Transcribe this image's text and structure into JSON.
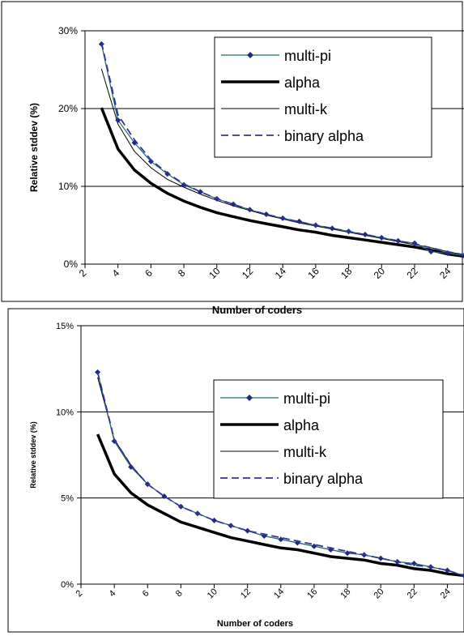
{
  "chart_data": [
    {
      "type": "line",
      "xlabel": "Number of coders",
      "ylabel": "Relative stddev (%)",
      "ylim": [
        0,
        30
      ],
      "yticks": [
        "0%",
        "10%",
        "20%",
        "30%"
      ],
      "xticks": [
        "2",
        "4",
        "6",
        "8",
        "10",
        "12",
        "14",
        "16",
        "18",
        "20",
        "22",
        "24"
      ],
      "xlim": [
        2,
        25
      ],
      "grid": "horizontal",
      "legend_position": "top-right",
      "x": [
        3,
        4,
        5,
        6,
        7,
        8,
        9,
        10,
        11,
        12,
        13,
        14,
        15,
        16,
        17,
        18,
        19,
        20,
        21,
        22,
        23,
        24,
        25
      ],
      "series": [
        {
          "name": "multi-pi",
          "style": "line-diamond",
          "color": "#1F6E6E",
          "values": [
            28.3,
            18.5,
            15.6,
            13.2,
            11.6,
            10.2,
            9.3,
            8.4,
            7.7,
            7.0,
            6.4,
            5.9,
            5.5,
            5.0,
            4.6,
            4.2,
            3.8,
            3.4,
            3.0,
            2.7,
            1.6,
            1.4,
            1.1
          ]
        },
        {
          "name": "alpha",
          "style": "thick",
          "color": "#000000",
          "values": [
            20.1,
            14.8,
            12.1,
            10.4,
            9.1,
            8.1,
            7.3,
            6.6,
            6.1,
            5.6,
            5.2,
            4.8,
            4.4,
            4.1,
            3.7,
            3.4,
            3.1,
            2.8,
            2.5,
            2.2,
            1.8,
            1.3,
            1.0
          ]
        },
        {
          "name": "multi-k",
          "style": "thin",
          "color": "#000000",
          "values": [
            25.1,
            18.0,
            14.5,
            12.4,
            10.9,
            9.9,
            9.0,
            8.2,
            7.5,
            6.9,
            6.3,
            5.8,
            5.3,
            4.9,
            4.5,
            4.1,
            3.7,
            3.3,
            2.9,
            2.5,
            2.1,
            1.6,
            1.2
          ]
        },
        {
          "name": "binary alpha",
          "style": "dashed",
          "color": "#333399",
          "values": [
            28.5,
            19.2,
            16.0,
            13.4,
            11.7,
            10.3,
            9.3,
            8.4,
            7.7,
            7.0,
            6.4,
            5.9,
            5.4,
            5.0,
            4.6,
            4.2,
            3.8,
            3.4,
            3.0,
            2.6,
            2.1,
            1.6,
            1.2
          ]
        }
      ]
    },
    {
      "type": "line",
      "xlabel": "Number of coders",
      "ylabel": "Relative stddev (%)",
      "ylim": [
        0,
        15
      ],
      "yticks": [
        "0%",
        "5%",
        "10%",
        "15%"
      ],
      "xticks": [
        "2",
        "4",
        "6",
        "8",
        "10",
        "12",
        "14",
        "16",
        "18",
        "20",
        "22",
        "24"
      ],
      "xlim": [
        2,
        25
      ],
      "grid": "horizontal",
      "legend_position": "top-right",
      "x": [
        3,
        4,
        5,
        6,
        7,
        8,
        9,
        10,
        11,
        12,
        13,
        14,
        15,
        16,
        17,
        18,
        19,
        20,
        21,
        22,
        23,
        24,
        25
      ],
      "series": [
        {
          "name": "multi-pi",
          "style": "line-diamond",
          "color": "#1F6E6E",
          "values": [
            12.3,
            8.3,
            6.8,
            5.8,
            5.1,
            4.5,
            4.1,
            3.7,
            3.4,
            3.1,
            2.8,
            2.6,
            2.4,
            2.2,
            2.0,
            1.8,
            1.7,
            1.5,
            1.3,
            1.2,
            1.0,
            0.8,
            0.5
          ]
        },
        {
          "name": "alpha",
          "style": "thick",
          "color": "#000000",
          "values": [
            8.7,
            6.4,
            5.3,
            4.6,
            4.1,
            3.6,
            3.3,
            3.0,
            2.7,
            2.5,
            2.3,
            2.1,
            2.0,
            1.8,
            1.6,
            1.5,
            1.4,
            1.2,
            1.1,
            0.9,
            0.8,
            0.6,
            0.5
          ]
        },
        {
          "name": "multi-k",
          "style": "thin",
          "color": "#000000",
          "values": [
            12.0,
            8.4,
            6.9,
            5.8,
            5.1,
            4.5,
            4.1,
            3.7,
            3.4,
            3.1,
            2.8,
            2.6,
            2.4,
            2.2,
            2.0,
            1.8,
            1.7,
            1.5,
            1.3,
            1.2,
            1.0,
            0.8,
            0.5
          ]
        },
        {
          "name": "binary alpha",
          "style": "dashed",
          "color": "#333399",
          "values": [
            12.3,
            8.4,
            6.9,
            5.8,
            5.1,
            4.5,
            4.1,
            3.7,
            3.4,
            3.1,
            2.9,
            2.7,
            2.5,
            2.3,
            2.1,
            1.9,
            1.7,
            1.5,
            1.3,
            1.1,
            1.0,
            0.8,
            0.5
          ]
        }
      ]
    }
  ]
}
